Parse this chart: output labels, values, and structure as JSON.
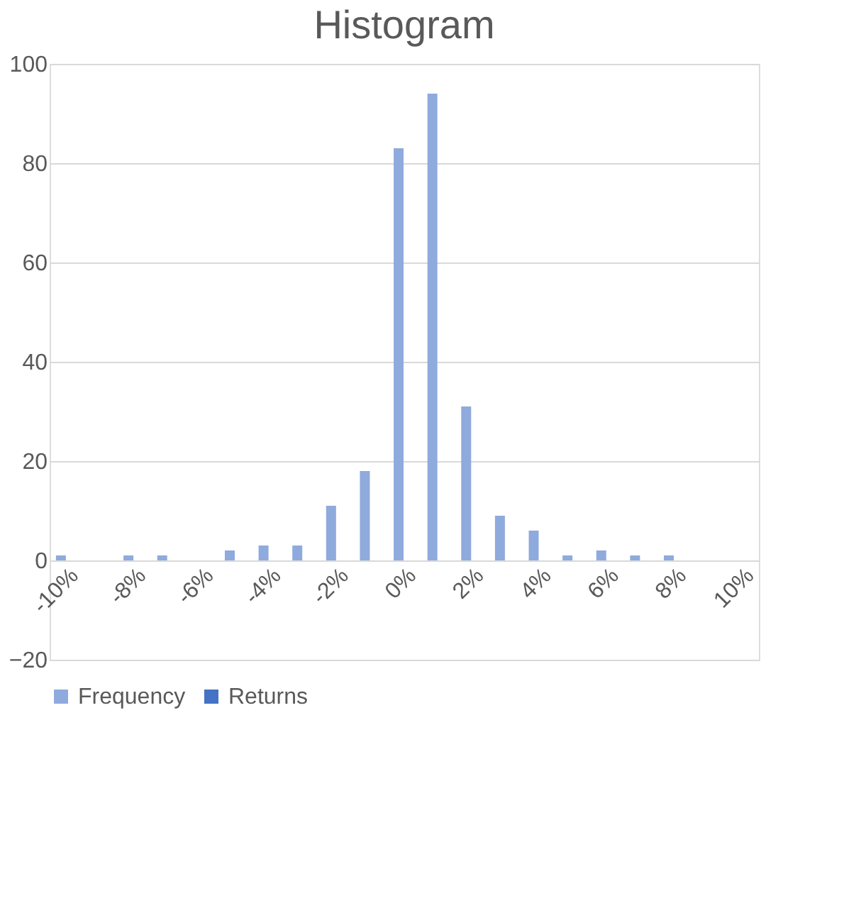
{
  "chart_data": {
    "type": "bar",
    "title": "Histogram",
    "categories": [
      "-10%",
      null,
      "-8%",
      null,
      "-6%",
      null,
      "-4%",
      null,
      "-2%",
      null,
      "0%",
      null,
      "2%",
      null,
      "4%",
      null,
      "6%",
      null,
      "8%",
      null,
      "10%"
    ],
    "series": [
      {
        "name": "Frequency",
        "color": "#8faadc",
        "values": [
          1,
          0,
          1,
          1,
          0,
          2,
          3,
          3,
          11,
          18,
          83,
          94,
          31,
          9,
          6,
          1,
          2,
          1,
          1,
          0,
          0
        ]
      },
      {
        "name": "Returns",
        "color": "#4472c4",
        "values": [
          null,
          null,
          null,
          null,
          null,
          null,
          null,
          null,
          null,
          null,
          null,
          null,
          null,
          null,
          null,
          null,
          null,
          null,
          null,
          null,
          null
        ]
      }
    ],
    "ylim": [
      -20,
      100
    ],
    "yticks": [
      -20,
      0,
      20,
      40,
      60,
      80,
      100
    ],
    "grid": "y",
    "legend": "bottom"
  }
}
